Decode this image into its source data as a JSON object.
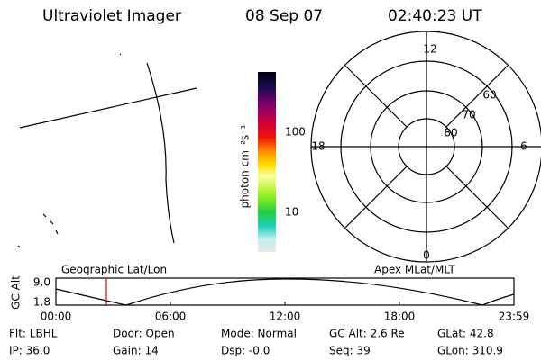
{
  "header": {
    "title": "Ultraviolet Imager",
    "date": "08 Sep 07",
    "time": "02:40:23 UT"
  },
  "colorbar": {
    "label": "photon cm⁻²s⁻¹",
    "ticks": [
      "100",
      "10"
    ]
  },
  "polar": {
    "hour_labels": [
      "12",
      "18",
      "6",
      "0"
    ],
    "lat_labels": [
      "60",
      "70",
      "80"
    ]
  },
  "altitude_plot": {
    "y_label": "GC Alt",
    "y_ticks": [
      "9.0",
      "1.8"
    ],
    "left_title": "Geographic Lat/Lon",
    "right_title": "Apex MLat/MLT",
    "x_ticks": [
      "00:00",
      "06:00",
      "12:00",
      "18:00",
      "23:59"
    ]
  },
  "info": [
    [
      "Flt: LBHL",
      "Door: Open",
      "Mode: Normal",
      "GC Alt: 2.6 Re",
      "GLat: 42.8"
    ],
    [
      "IP: 36.0",
      "Gain: 14",
      "Dsp: -0.0",
      "Seq: 39",
      "GLon: 310.9"
    ]
  ]
}
